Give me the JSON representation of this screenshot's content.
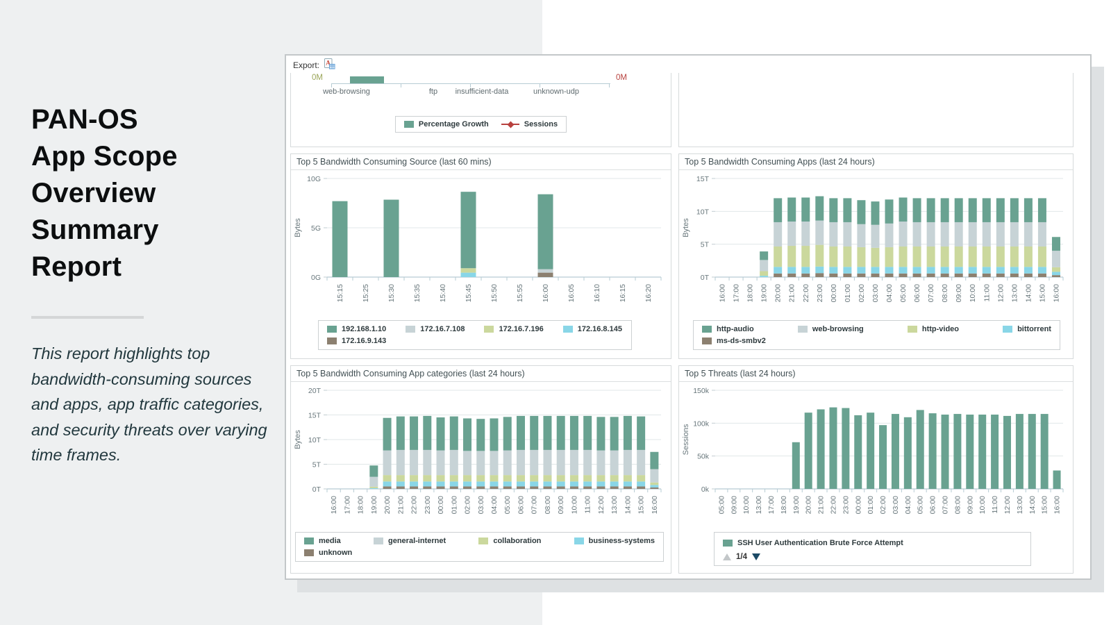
{
  "colors": {
    "green": "#69a291",
    "gray": "#c7d3d6",
    "yellowgreen": "#cbd89d",
    "cyan": "#89d6e7",
    "brown": "#8c8070",
    "red": "#b8413e",
    "olive": "#9aa558",
    "axis": "#b6cbd3",
    "grid": "#e1e7e8",
    "pager_up": "#c3c7c9",
    "pager_down": "#1c4a66"
  },
  "sidebar": {
    "title_lines": [
      "PAN-OS",
      "App Scope",
      "Overview",
      "Summary",
      "Report"
    ],
    "description": "This report highlights top bandwidth-consuming sources and apps, app traffic categories, and security threats over varying time frames."
  },
  "export_bar": {
    "label": "Export:",
    "icon": "pdf-export-icon"
  },
  "growth_chart": {
    "left_axis_label": "0M",
    "right_axis_label": "0M",
    "categories": [
      "web-browsing",
      "ftp",
      "insufficient-data",
      "unknown-udp"
    ],
    "bar_category": "web-browsing",
    "bar_color": "green",
    "legend": [
      {
        "label": "Percentage Growth",
        "color": "green",
        "marker": "swatch"
      },
      {
        "label": "Sessions",
        "color": "red",
        "marker": "line"
      }
    ]
  },
  "charts": [
    {
      "type": "bar",
      "title": "Top 5 Bandwidth Consuming Source (last 60 mins)",
      "ylabel": "Bytes",
      "ymax": 10,
      "yticks": [
        {
          "v": 0,
          "label": "0G"
        },
        {
          "v": 5,
          "label": "5G"
        },
        {
          "v": 10,
          "label": "10G"
        }
      ],
      "categories": [
        "15:15",
        "15:25",
        "15:30",
        "15:35",
        "15:40",
        "15:45",
        "15:50",
        "15:55",
        "16:00",
        "16:05",
        "16:10",
        "16:15",
        "16:20"
      ],
      "series": [
        {
          "name": "172.16.9.143",
          "color": "brown",
          "values": [
            0,
            0,
            0,
            0,
            0,
            0,
            0,
            0,
            0.45,
            0,
            0,
            0,
            0
          ]
        },
        {
          "name": "172.16.8.145",
          "color": "cyan",
          "values": [
            0,
            0,
            0,
            0,
            0,
            0.45,
            0,
            0,
            0,
            0,
            0,
            0,
            0
          ]
        },
        {
          "name": "172.16.7.196",
          "color": "yellowgreen",
          "values": [
            0,
            0,
            0,
            0,
            0,
            0.45,
            0,
            0,
            0,
            0,
            0,
            0,
            0
          ]
        },
        {
          "name": "172.16.7.108",
          "color": "gray",
          "values": [
            0,
            0,
            0,
            0,
            0,
            0,
            0,
            0,
            0.35,
            0,
            0,
            0,
            0
          ]
        },
        {
          "name": "192.168.1.10",
          "color": "green",
          "values": [
            7.7,
            0,
            7.85,
            0,
            0,
            7.75,
            0,
            0,
            7.6,
            0,
            0,
            0,
            0
          ]
        }
      ],
      "legend_order": [
        "192.168.1.10",
        "172.16.7.108",
        "172.16.7.196",
        "172.16.8.145",
        "172.16.9.143"
      ]
    },
    {
      "type": "bar",
      "title": "Top 5 Bandwidth Consuming Apps (last 24 hours)",
      "ylabel": "Bytes",
      "ymax": 15,
      "yticks": [
        {
          "v": 0,
          "label": "0T"
        },
        {
          "v": 5,
          "label": "5T"
        },
        {
          "v": 10,
          "label": "10T"
        },
        {
          "v": 15,
          "label": "15T"
        }
      ],
      "categories": [
        "16:00",
        "17:00",
        "18:00",
        "19:00",
        "20:00",
        "21:00",
        "22:00",
        "23:00",
        "00:00",
        "01:00",
        "02:00",
        "03:00",
        "04:00",
        "05:00",
        "06:00",
        "07:00",
        "08:00",
        "09:00",
        "10:00",
        "11:00",
        "12:00",
        "13:00",
        "14:00",
        "15:00",
        "16:00"
      ],
      "series": [
        {
          "name": "ms-ds-smbv2",
          "color": "brown",
          "values": [
            0,
            0,
            0,
            0,
            0.55,
            0.55,
            0.55,
            0.6,
            0.55,
            0.55,
            0.55,
            0.55,
            0.55,
            0.55,
            0.55,
            0.55,
            0.55,
            0.55,
            0.55,
            0.55,
            0.55,
            0.55,
            0.55,
            0.55,
            0.3
          ]
        },
        {
          "name": "bittorrent",
          "color": "cyan",
          "values": [
            0,
            0,
            0,
            0.2,
            1,
            1,
            1,
            1,
            1,
            1,
            1,
            1,
            1,
            1,
            1,
            1,
            1,
            1,
            1,
            1,
            1,
            1,
            1,
            1,
            0.5
          ]
        },
        {
          "name": "http-video",
          "color": "yellowgreen",
          "values": [
            0,
            0,
            0,
            0.7,
            3.1,
            3.2,
            3.2,
            3.3,
            3.1,
            3.1,
            3,
            2.9,
            3,
            3.1,
            3.1,
            3.1,
            3.1,
            3.1,
            3.1,
            3.1,
            3.1,
            3.1,
            3.1,
            3.1,
            0.7
          ]
        },
        {
          "name": "web-browsing",
          "color": "gray",
          "values": [
            0,
            0,
            0,
            1.7,
            3.7,
            3.7,
            3.7,
            3.7,
            3.7,
            3.7,
            3.5,
            3.5,
            3.6,
            3.8,
            3.7,
            3.7,
            3.7,
            3.7,
            3.7,
            3.7,
            3.7,
            3.7,
            3.7,
            3.7,
            2.5
          ]
        },
        {
          "name": "http-audio",
          "color": "green",
          "values": [
            0,
            0,
            0,
            1.3,
            3.65,
            3.65,
            3.65,
            3.7,
            3.65,
            3.65,
            3.65,
            3.55,
            3.65,
            3.65,
            3.65,
            3.65,
            3.65,
            3.65,
            3.65,
            3.65,
            3.65,
            3.65,
            3.65,
            3.65,
            2.1
          ]
        }
      ],
      "legend_order": [
        "http-audio",
        "web-browsing",
        "http-video",
        "bittorrent",
        "ms-ds-smbv2"
      ]
    },
    {
      "type": "bar",
      "title": "Top 5 Bandwidth Consuming App categories (last 24 hours)",
      "ylabel": "Bytes",
      "ymax": 20,
      "yticks": [
        {
          "v": 0,
          "label": "0T"
        },
        {
          "v": 5,
          "label": "5T"
        },
        {
          "v": 10,
          "label": "10T"
        },
        {
          "v": 15,
          "label": "15T"
        },
        {
          "v": 20,
          "label": "20T"
        }
      ],
      "categories": [
        "16:00",
        "17:00",
        "18:00",
        "19:00",
        "20:00",
        "21:00",
        "22:00",
        "23:00",
        "00:00",
        "01:00",
        "02:00",
        "03:00",
        "04:00",
        "05:00",
        "06:00",
        "07:00",
        "08:00",
        "09:00",
        "10:00",
        "11:00",
        "12:00",
        "13:00",
        "14:00",
        "15:00",
        "16:00"
      ],
      "series": [
        {
          "name": "unknown",
          "color": "brown",
          "values": [
            0,
            0,
            0,
            0,
            0.5,
            0.5,
            0.5,
            0.5,
            0.5,
            0.5,
            0.5,
            0.5,
            0.5,
            0.5,
            0.5,
            0.5,
            0.5,
            0.5,
            0.5,
            0.5,
            0.5,
            0.5,
            0.5,
            0.5,
            0.3
          ]
        },
        {
          "name": "business-systems",
          "color": "cyan",
          "values": [
            0,
            0,
            0,
            0.15,
            1,
            1,
            1,
            1,
            1,
            1,
            1,
            1,
            1,
            1,
            1,
            1,
            1,
            1,
            1,
            1,
            1,
            1,
            1,
            1,
            0.5
          ]
        },
        {
          "name": "collaboration",
          "color": "yellowgreen",
          "values": [
            0,
            0,
            0,
            0.3,
            1.3,
            1.3,
            1.3,
            1.3,
            1.3,
            1.3,
            1.3,
            1.3,
            1.3,
            1.3,
            1.3,
            1.3,
            1.3,
            1.3,
            1.3,
            1.3,
            1.3,
            1.3,
            1.3,
            1.3,
            0.5
          ]
        },
        {
          "name": "general-internet",
          "color": "gray",
          "values": [
            0,
            0,
            0,
            2,
            5,
            5.1,
            5.1,
            5.1,
            5,
            5.1,
            4.9,
            4.9,
            4.9,
            5,
            5.1,
            5.1,
            5.1,
            5.1,
            5.1,
            5.1,
            5,
            5,
            5.1,
            5.1,
            2.7
          ]
        },
        {
          "name": "media",
          "color": "green",
          "values": [
            0,
            0,
            0,
            2.3,
            6.6,
            6.8,
            6.8,
            6.9,
            6.7,
            6.8,
            6.6,
            6.5,
            6.6,
            6.8,
            6.9,
            6.9,
            6.9,
            6.9,
            6.9,
            6.9,
            6.8,
            6.8,
            6.9,
            6.8,
            3.5
          ]
        }
      ],
      "legend_order": [
        "media",
        "general-internet",
        "collaboration",
        "business-systems",
        "unknown"
      ]
    },
    {
      "type": "bar",
      "title": "Top 5 Threats (last 24 hours)",
      "ylabel": "Sessions",
      "ymax": 150,
      "yticks": [
        {
          "v": 0,
          "label": "0k"
        },
        {
          "v": 50,
          "label": "50k"
        },
        {
          "v": 100,
          "label": "100k"
        },
        {
          "v": 150,
          "label": "150k"
        }
      ],
      "categories": [
        "05:00",
        "09:00",
        "10:00",
        "13:00",
        "17:00",
        "18:00",
        "19:00",
        "20:00",
        "21:00",
        "22:00",
        "23:00",
        "00:00",
        "01:00",
        "02:00",
        "03:00",
        "04:00",
        "05:00",
        "06:00",
        "07:00",
        "08:00",
        "09:00",
        "10:00",
        "11:00",
        "12:00",
        "13:00",
        "14:00",
        "15:00",
        "16:00"
      ],
      "series": [
        {
          "name": "SSH User Authentication Brute Force Attempt",
          "color": "green",
          "values": [
            0,
            0,
            0,
            0,
            0,
            0,
            71,
            116,
            121,
            124,
            123,
            112,
            116,
            97,
            114,
            109,
            120,
            115,
            113,
            114,
            113,
            113,
            113,
            111,
            114,
            114,
            114,
            28
          ]
        }
      ],
      "legend_order": [
        "SSH User Authentication Brute Force Attempt"
      ],
      "pager": {
        "label": "1/4"
      }
    }
  ]
}
